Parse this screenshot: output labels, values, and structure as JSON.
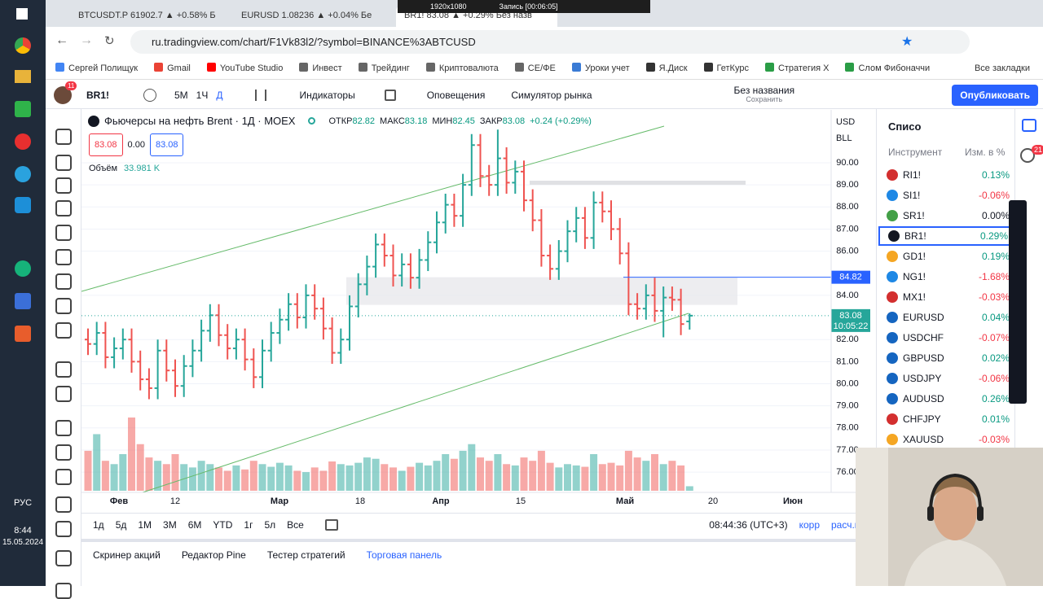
{
  "browser": {
    "tabs": [
      "BTCUSDT.P 61902.7 ▲ +0.58% Б",
      "EURUSD 1.08236 ▲ +0.04% Бе",
      "BR1! 83.08 ▲ +0.29% Без назв"
    ],
    "recording": [
      "1920x1080",
      "Запись [00:06:05]"
    ],
    "url": "ru.tradingview.com/chart/F1Vk83l2/?symbol=BINANCE%3ABTCUSD",
    "bookmarks": [
      "Сергей Полищук",
      "Gmail",
      "YouTube Studio",
      "Инвест",
      "Трейдинг",
      "Криптовалюта",
      "CE/ФЕ",
      "Уроки учет",
      "Я.Диск",
      "ГетКурс",
      "Стратегия X",
      "Слом Фибоначчи"
    ],
    "all_bookmarks": "Все закладки"
  },
  "toolbar": {
    "avatar_badge": "11",
    "symbol": "BR1!",
    "intervals": [
      "5М",
      "1Ч",
      "Д"
    ],
    "indicators": "Индикаторы",
    "alerts": "Оповещения",
    "replay": "Симулятор рынка",
    "layout_name": "Без названия",
    "layout_status": "Сохранить",
    "publish": "Опубликовать"
  },
  "legend": {
    "title": "Фьючерсы на нефть Brent · 1Д · MOEX",
    "ohlc": [
      [
        "ОТКР",
        "82.82"
      ],
      [
        "МАКС",
        "83.18"
      ],
      [
        "МИН",
        "82.45"
      ],
      [
        "ЗАКР",
        "83.08"
      ]
    ],
    "change": "+0.24 (+0.29%)",
    "bid": "83.08",
    "spread": "0.00",
    "ask": "83.08",
    "volume_label": "Объём",
    "volume_value": "33.981 K"
  },
  "chart_data": {
    "type": "candlestick",
    "open": [
      82.0,
      81.8,
      82.3,
      81.2,
      81.6,
      82.0,
      81.0,
      80.2,
      79.8,
      81.5,
      80.6,
      79.9,
      80.8,
      81.5,
      82.4,
      83.1,
      82.2,
      81.6,
      82.0,
      81.1,
      80.3,
      81.5,
      82.3,
      82.9,
      83.6,
      83.0,
      84.0,
      83.4,
      82.5,
      81.4,
      82.0,
      83.5,
      84.5,
      85.3,
      86.3,
      85.8,
      84.9,
      85.4,
      84.8,
      85.6,
      86.4,
      87.3,
      88.1,
      87.6,
      89.0,
      90.8,
      89.4,
      89.0,
      90.2,
      89.1,
      89.6,
      88.3,
      87.4,
      85.8,
      85.2,
      86.0,
      86.9,
      87.5,
      86.6,
      88.2,
      87.8,
      87.0,
      85.9,
      83.6,
      83.4,
      84.0,
      83.3,
      83.9,
      83.8,
      82.82
    ],
    "high": [
      82.5,
      82.8,
      82.8,
      82.1,
      82.5,
      82.5,
      81.5,
      80.7,
      82.0,
      82.0,
      81.1,
      81.3,
      82.0,
      82.9,
      83.6,
      83.6,
      82.7,
      82.5,
      82.5,
      81.6,
      82.0,
      82.8,
      83.4,
      84.1,
      84.1,
      84.5,
      84.5,
      83.9,
      83.0,
      82.5,
      84.0,
      85.0,
      85.8,
      86.8,
      86.8,
      86.3,
      85.9,
      85.9,
      86.1,
      86.9,
      87.8,
      88.6,
      88.6,
      89.5,
      91.3,
      91.3,
      89.9,
      91.5,
      90.7,
      90.1,
      90.1,
      88.8,
      87.9,
      86.3,
      86.5,
      87.4,
      88.0,
      88.0,
      88.7,
      88.7,
      88.3,
      87.5,
      86.4,
      84.1,
      84.5,
      84.8,
      84.4,
      84.4,
      84.3,
      83.18
    ],
    "low": [
      81.3,
      81.3,
      80.7,
      80.7,
      81.1,
      80.5,
      79.7,
      79.3,
      79.3,
      80.1,
      79.4,
      79.4,
      80.3,
      81.0,
      81.9,
      81.7,
      81.1,
      81.1,
      80.6,
      79.8,
      79.8,
      81.0,
      81.8,
      82.4,
      82.5,
      82.5,
      82.9,
      82.0,
      80.9,
      80.9,
      81.5,
      83.0,
      84.0,
      84.8,
      85.3,
      84.4,
      84.4,
      84.3,
      84.3,
      85.1,
      85.9,
      86.8,
      87.1,
      87.1,
      88.5,
      88.9,
      88.5,
      88.5,
      88.6,
      88.6,
      87.8,
      86.9,
      85.3,
      84.7,
      84.7,
      85.5,
      86.4,
      86.1,
      86.1,
      87.3,
      86.5,
      85.4,
      83.1,
      82.9,
      82.9,
      82.8,
      82.1,
      83.3,
      82.2,
      82.45
    ],
    "close": [
      81.8,
      82.3,
      81.2,
      81.6,
      82.0,
      81.0,
      80.2,
      79.8,
      81.5,
      80.6,
      79.9,
      80.8,
      81.5,
      82.4,
      83.1,
      82.2,
      81.6,
      82.0,
      81.1,
      80.3,
      81.5,
      82.3,
      82.9,
      83.6,
      83.0,
      84.0,
      83.4,
      82.5,
      81.4,
      82.0,
      83.5,
      84.5,
      85.3,
      86.3,
      85.8,
      84.9,
      85.4,
      84.8,
      85.6,
      86.4,
      87.3,
      88.1,
      87.6,
      89.0,
      90.8,
      89.4,
      89.0,
      90.2,
      89.1,
      89.6,
      88.3,
      87.4,
      85.8,
      85.2,
      86.0,
      86.9,
      87.5,
      86.6,
      88.2,
      87.8,
      87.0,
      85.9,
      83.6,
      83.4,
      84.0,
      83.3,
      83.9,
      83.8,
      82.7,
      83.08
    ],
    "volume": [
      300,
      425,
      225,
      200,
      275,
      550,
      350,
      250,
      225,
      200,
      275,
      200,
      175,
      225,
      200,
      175,
      150,
      190,
      160,
      225,
      200,
      180,
      210,
      190,
      150,
      140,
      175,
      150,
      220,
      200,
      190,
      210,
      250,
      240,
      200,
      175,
      150,
      180,
      210,
      190,
      225,
      275,
      240,
      300,
      350,
      250,
      225,
      275,
      200,
      190,
      250,
      225,
      300,
      210,
      175,
      200,
      190,
      180,
      275,
      200,
      210,
      190,
      300,
      250,
      225,
      275,
      200,
      225,
      190,
      33.981
    ],
    "up_color": "#26a69a",
    "down_color": "#ef5350",
    "currency": "USD",
    "unit": "BLL",
    "ylim": [
      75.5,
      92.4
    ],
    "yticks": [
      {
        "value": 90,
        "label": "90.00"
      },
      {
        "value": 89,
        "label": "89.00"
      },
      {
        "value": 88,
        "label": "88.00"
      },
      {
        "value": 87,
        "label": "87.00"
      },
      {
        "value": 86,
        "label": "86.00"
      },
      {
        "value": 84,
        "label": "84.00"
      },
      {
        "value": 82,
        "label": "82.00"
      },
      {
        "value": 81,
        "label": "81.00"
      },
      {
        "value": 80,
        "label": "80.00"
      },
      {
        "value": 79,
        "label": "79.00"
      },
      {
        "value": 78,
        "label": "78.00"
      },
      {
        "value": 77,
        "label": "77.00"
      },
      {
        "value": 76,
        "label": "76.00"
      }
    ],
    "alert_line": {
      "value": 84.82,
      "label": "84.82"
    },
    "last_price": {
      "value": 83.08,
      "label": "83.08",
      "countdown": "10:05:22"
    },
    "xlabels": [
      "Фев",
      "12",
      "Мар",
      "18",
      "Апр",
      "15",
      "Май",
      "20",
      "Июн"
    ]
  },
  "bottom_bar": {
    "ranges": [
      "1д",
      "5д",
      "1М",
      "3М",
      "6М",
      "YTD",
      "1г",
      "5л",
      "Все"
    ],
    "clock": "08:44:36 (UTC+3)",
    "adj": "корр",
    "settle": "расч.цена"
  },
  "panels": [
    "Скринер акций",
    "Редактор Pine",
    "Тестер стратегий",
    "Торговая панель"
  ],
  "watchlist": {
    "title": "Списо",
    "columns": [
      "Инструмент",
      "Изм. в %"
    ],
    "badge": "21",
    "rows": [
      {
        "symbol": "RI1!",
        "change": "0.13%",
        "color": "#089981"
      },
      {
        "symbol": "SI1!",
        "change": "-0.06%",
        "color": "#f23645"
      },
      {
        "symbol": "SR1!",
        "change": "0.00%",
        "color": "#131722"
      },
      {
        "symbol": "BR1!",
        "change": "0.29%",
        "color": "#089981"
      },
      {
        "symbol": "GD1!",
        "change": "0.19%",
        "color": "#089981"
      },
      {
        "symbol": "NG1!",
        "change": "-1.68%",
        "color": "#f23645"
      },
      {
        "symbol": "MX1!",
        "change": "-0.03%",
        "color": "#f23645"
      },
      {
        "symbol": "EURUSD",
        "change": "0.04%",
        "color": "#089981"
      },
      {
        "symbol": "USDCHF",
        "change": "-0.07%",
        "color": "#f23645"
      },
      {
        "symbol": "GBPUSD",
        "change": "0.02%",
        "color": "#089981"
      },
      {
        "symbol": "USDJPY",
        "change": "-0.06%",
        "color": "#f23645"
      },
      {
        "symbol": "AUDUSD",
        "change": "0.26%",
        "color": "#089981"
      },
      {
        "symbol": "CHFJPY",
        "change": "0.01%",
        "color": "#089981"
      },
      {
        "symbol": "XAUUSD",
        "change": "-0.03%",
        "color": "#f23645"
      }
    ]
  },
  "taskbar": {
    "language": "РУС",
    "time": "8:44",
    "date": "15.05.2024"
  }
}
